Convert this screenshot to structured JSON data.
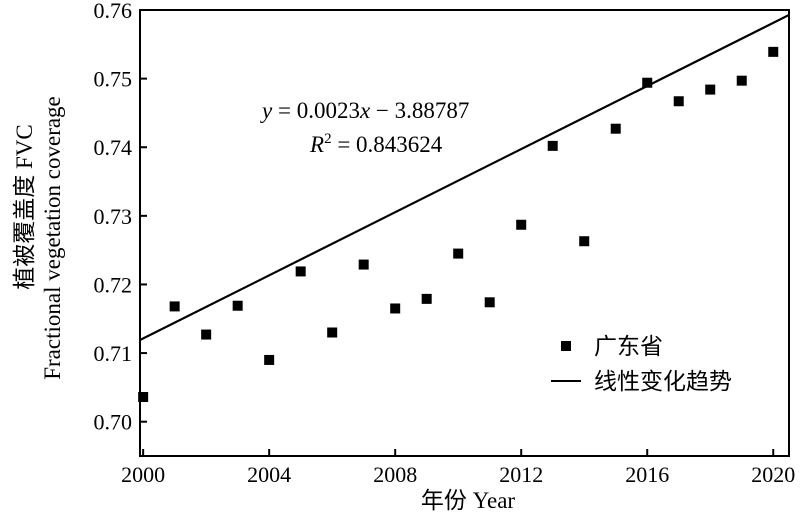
{
  "chart_data": {
    "type": "scatter",
    "xlabel": "年份 Year",
    "ylabel_line1": "植被覆盖度 FVC",
    "ylabel_line2": "Fractional vegetation coverage",
    "xlim": [
      1999.9,
      2020.5
    ],
    "ylim": [
      0.695,
      0.76
    ],
    "xticks": [
      2000,
      2004,
      2008,
      2012,
      2016,
      2020
    ],
    "yticks": [
      0.7,
      0.71,
      0.72,
      0.73,
      0.74,
      0.75,
      0.76
    ],
    "ytick_labels": [
      "0.70",
      "0.71",
      "0.72",
      "0.73",
      "0.74",
      "0.75",
      "0.76"
    ],
    "series": [
      {
        "name": "广东省",
        "x": [
          2000,
          2001,
          2002,
          2003,
          2004,
          2005,
          2006,
          2007,
          2008,
          2009,
          2010,
          2011,
          2012,
          2013,
          2014,
          2015,
          2016,
          2017,
          2018,
          2019,
          2020
        ],
        "y": [
          0.7036,
          0.7168,
          0.7127,
          0.7169,
          0.709,
          0.7219,
          0.713,
          0.7229,
          0.7165,
          0.7179,
          0.7245,
          0.7174,
          0.7287,
          0.7402,
          0.7263,
          0.7427,
          0.7494,
          0.7467,
          0.7484,
          0.7497,
          0.7539
        ]
      }
    ],
    "trend": {
      "name": "线性变化趋势",
      "slope": 0.0023,
      "intercept": -3.88787
    },
    "equation_text_y": "y",
    "equation_text_rest": " = 0.0023",
    "equation_text_x": "x",
    "equation_text_tail": " − 3.88787",
    "r2_text_R": "R",
    "r2_text_sup": "2",
    "r2_text_rest": " = 0.843624",
    "legend": {
      "placement": "bottom-right"
    }
  }
}
